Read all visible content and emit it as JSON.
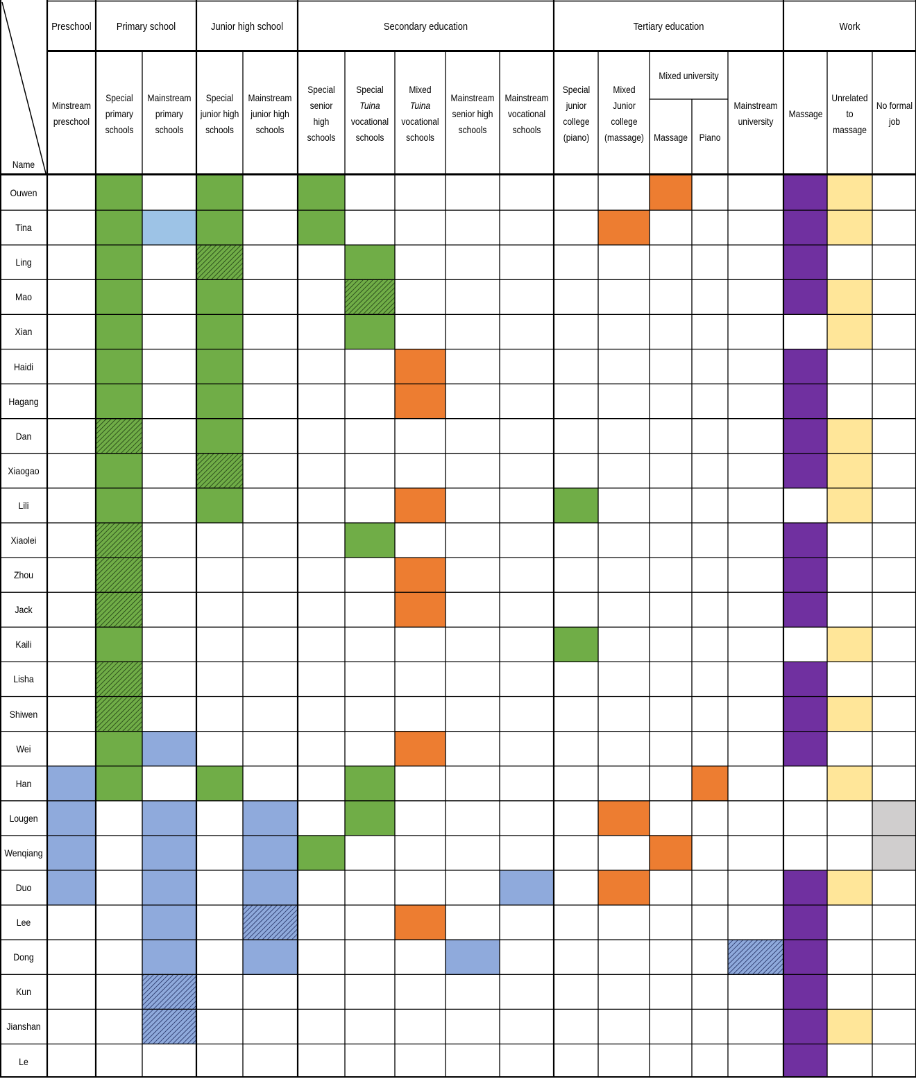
{
  "chart_data": {
    "type": "table",
    "corner": {
      "name_label": "Name"
    },
    "groups": [
      {
        "key": "preschool",
        "label": "Preschool"
      },
      {
        "key": "primary",
        "label": "Primary school"
      },
      {
        "key": "junior",
        "label": "Junior high school"
      },
      {
        "key": "secondary",
        "label": "Secondary education"
      },
      {
        "key": "tertiary",
        "label": "Tertiary education"
      },
      {
        "key": "work",
        "label": "Work"
      }
    ],
    "subgroups": [
      {
        "key": "mixed_university",
        "label": "Mixed university"
      }
    ],
    "columns": [
      {
        "id": 0,
        "group": "preschool",
        "label": "Minstream preschool"
      },
      {
        "id": 1,
        "group": "primary",
        "label": "Special primary schools"
      },
      {
        "id": 2,
        "group": "primary",
        "label": "Mainstream primary schools"
      },
      {
        "id": 3,
        "group": "junior",
        "label": "Special junior high schools"
      },
      {
        "id": 4,
        "group": "junior",
        "label": "Mainstream junior high schools"
      },
      {
        "id": 5,
        "group": "secondary",
        "label": "Special senior high schools"
      },
      {
        "id": 6,
        "group": "secondary",
        "label_parts": [
          "Special",
          "Tuina",
          "vocational schools"
        ]
      },
      {
        "id": 7,
        "group": "secondary",
        "label_parts": [
          "Mixed",
          "Tuina",
          "vocational schools"
        ]
      },
      {
        "id": 8,
        "group": "secondary",
        "label": "Mainstream senior high schools"
      },
      {
        "id": 9,
        "group": "secondary",
        "label": "Mainstream vocational schools"
      },
      {
        "id": 10,
        "group": "tertiary",
        "label": "Special junior college (piano)"
      },
      {
        "id": 11,
        "group": "tertiary",
        "label": "Mixed Junior college (massage)"
      },
      {
        "id": 12,
        "group": "tertiary",
        "subgroup": "mixed_university",
        "label": "Massage"
      },
      {
        "id": 13,
        "group": "tertiary",
        "subgroup": "mixed_university",
        "label": "Piano"
      },
      {
        "id": 14,
        "group": "tertiary",
        "label": "Mainstream university"
      },
      {
        "id": 15,
        "group": "work",
        "label": "Massage"
      },
      {
        "id": 16,
        "group": "work",
        "label": "Unrelated to massage"
      },
      {
        "id": 17,
        "group": "work",
        "label": "No formal job"
      }
    ],
    "fill_colors": {
      "special": "#70ad47",
      "special_partial": "#70ad47",
      "mainstream": "#8faadc",
      "mainstream_light": "#9dc3e6",
      "mainstream_partial": "#8faadc",
      "mixed": "#ed7d31",
      "massage_work": "#7030a0",
      "unrelated_work": "#ffe699",
      "no_job": "#d0cece"
    },
    "hatched_codes": [
      "special_partial",
      "mainstream_partial"
    ],
    "rows": [
      {
        "name": "Ouwen",
        "cells": {
          "1": "special",
          "3": "special",
          "5": "special",
          "12": "mixed",
          "15": "massage_work",
          "16": "unrelated_work"
        }
      },
      {
        "name": "Tina",
        "cells": {
          "1": "special",
          "2": "mainstream_light",
          "3": "special",
          "5": "special",
          "11": "mixed",
          "15": "massage_work",
          "16": "unrelated_work"
        }
      },
      {
        "name": "Ling",
        "cells": {
          "1": "special",
          "3": "special_partial",
          "6": "special",
          "15": "massage_work"
        }
      },
      {
        "name": "Mao",
        "cells": {
          "1": "special",
          "3": "special",
          "6": "special_partial",
          "15": "massage_work",
          "16": "unrelated_work"
        }
      },
      {
        "name": "Xian",
        "cells": {
          "1": "special",
          "3": "special",
          "6": "special",
          "16": "unrelated_work"
        }
      },
      {
        "name": "Haidi",
        "cells": {
          "1": "special",
          "3": "special",
          "7": "mixed",
          "15": "massage_work"
        }
      },
      {
        "name": "Hagang",
        "cells": {
          "1": "special",
          "3": "special",
          "7": "mixed",
          "15": "massage_work"
        }
      },
      {
        "name": "Dan",
        "cells": {
          "1": "special_partial",
          "3": "special",
          "15": "massage_work",
          "16": "unrelated_work"
        }
      },
      {
        "name": "Xiaogao",
        "cells": {
          "1": "special",
          "3": "special_partial",
          "15": "massage_work",
          "16": "unrelated_work"
        }
      },
      {
        "name": "Lili",
        "cells": {
          "1": "special",
          "3": "special",
          "7": "mixed",
          "10": "special",
          "16": "unrelated_work"
        }
      },
      {
        "name": "Xiaolei",
        "cells": {
          "1": "special_partial",
          "6": "special",
          "15": "massage_work"
        }
      },
      {
        "name": "Zhou",
        "cells": {
          "1": "special_partial",
          "7": "mixed",
          "15": "massage_work"
        }
      },
      {
        "name": "Jack",
        "cells": {
          "1": "special_partial",
          "7": "mixed",
          "15": "massage_work"
        }
      },
      {
        "name": "Kaili",
        "cells": {
          "1": "special",
          "10": "special",
          "16": "unrelated_work"
        }
      },
      {
        "name": "Lisha",
        "cells": {
          "1": "special_partial",
          "15": "massage_work"
        }
      },
      {
        "name": "Shiwen",
        "cells": {
          "1": "special_partial",
          "15": "massage_work",
          "16": "unrelated_work"
        }
      },
      {
        "name": "Wei",
        "cells": {
          "1": "special",
          "2": "mainstream",
          "7": "mixed",
          "15": "massage_work"
        }
      },
      {
        "name": "Han",
        "cells": {
          "0": "mainstream",
          "1": "special",
          "3": "special",
          "6": "special",
          "13": "mixed",
          "16": "unrelated_work"
        }
      },
      {
        "name": "Lougen",
        "cells": {
          "0": "mainstream",
          "2": "mainstream",
          "4": "mainstream",
          "6": "special",
          "11": "mixed",
          "17": "no_job"
        }
      },
      {
        "name": "Wenqiang",
        "cells": {
          "0": "mainstream",
          "2": "mainstream",
          "4": "mainstream",
          "5": "special",
          "12": "mixed",
          "17": "no_job"
        }
      },
      {
        "name": "Duo",
        "cells": {
          "0": "mainstream",
          "2": "mainstream",
          "4": "mainstream",
          "9": "mainstream",
          "11": "mixed",
          "15": "massage_work",
          "16": "unrelated_work"
        }
      },
      {
        "name": "Lee",
        "cells": {
          "2": "mainstream",
          "4": "mainstream_partial",
          "7": "mixed",
          "15": "massage_work"
        }
      },
      {
        "name": "Dong",
        "cells": {
          "2": "mainstream",
          "4": "mainstream",
          "8": "mainstream",
          "14": "mainstream_partial",
          "15": "massage_work"
        }
      },
      {
        "name": "Kun",
        "cells": {
          "2": "mainstream_partial",
          "15": "massage_work"
        }
      },
      {
        "name": "Jianshan",
        "cells": {
          "2": "mainstream_partial",
          "15": "massage_work",
          "16": "unrelated_work"
        }
      },
      {
        "name": "Le",
        "cells": {
          "15": "massage_work"
        }
      }
    ]
  }
}
